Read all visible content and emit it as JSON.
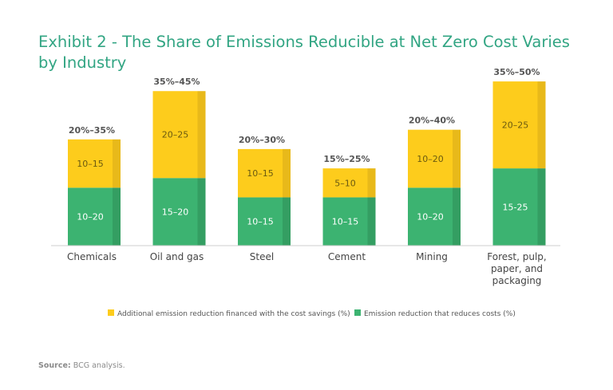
{
  "title": "Exhibit 2 - The Share of Emissions Reducible at Net Zero Cost Varies by Industry",
  "source_label": "Source:",
  "source_text": "BCG analysis.",
  "colors": {
    "green": "#3cb371",
    "green_side": "#349e62",
    "yellow": "#fdcc1c",
    "yellow_side": "#e8b91a",
    "title": "#32a583"
  },
  "chart_data": {
    "type": "bar",
    "stacked": true,
    "categories": [
      [
        "Chemicals"
      ],
      [
        "Oil and gas"
      ],
      [
        "Steel"
      ],
      [
        "Cement"
      ],
      [
        "Mining"
      ],
      [
        "Forest, pulp,",
        "paper, and",
        "packaging"
      ]
    ],
    "series": [
      {
        "name": "Emission reduction that reduces costs (%)",
        "labels": [
          "10–20",
          "15–20",
          "10–15",
          "10–15",
          "10–20",
          "15-25"
        ],
        "values": [
          15,
          17.5,
          12.5,
          12.5,
          15,
          20
        ]
      },
      {
        "name": "Additional emission reduction financed with the cost savings (%)",
        "labels": [
          "10–15",
          "20–25",
          "10–15",
          "5–10",
          "10–20",
          "20–25"
        ],
        "values": [
          12.5,
          22.5,
          12.5,
          7.5,
          15,
          22.5
        ]
      }
    ],
    "totals": [
      "20%–35%",
      "35%–45%",
      "20%–30%",
      "15%–25%",
      "20%–40%",
      "35%–50%"
    ],
    "legend_order": [
      1,
      0
    ],
    "legend_position": "bottom",
    "ylim": [
      0,
      45
    ],
    "grid": false
  }
}
